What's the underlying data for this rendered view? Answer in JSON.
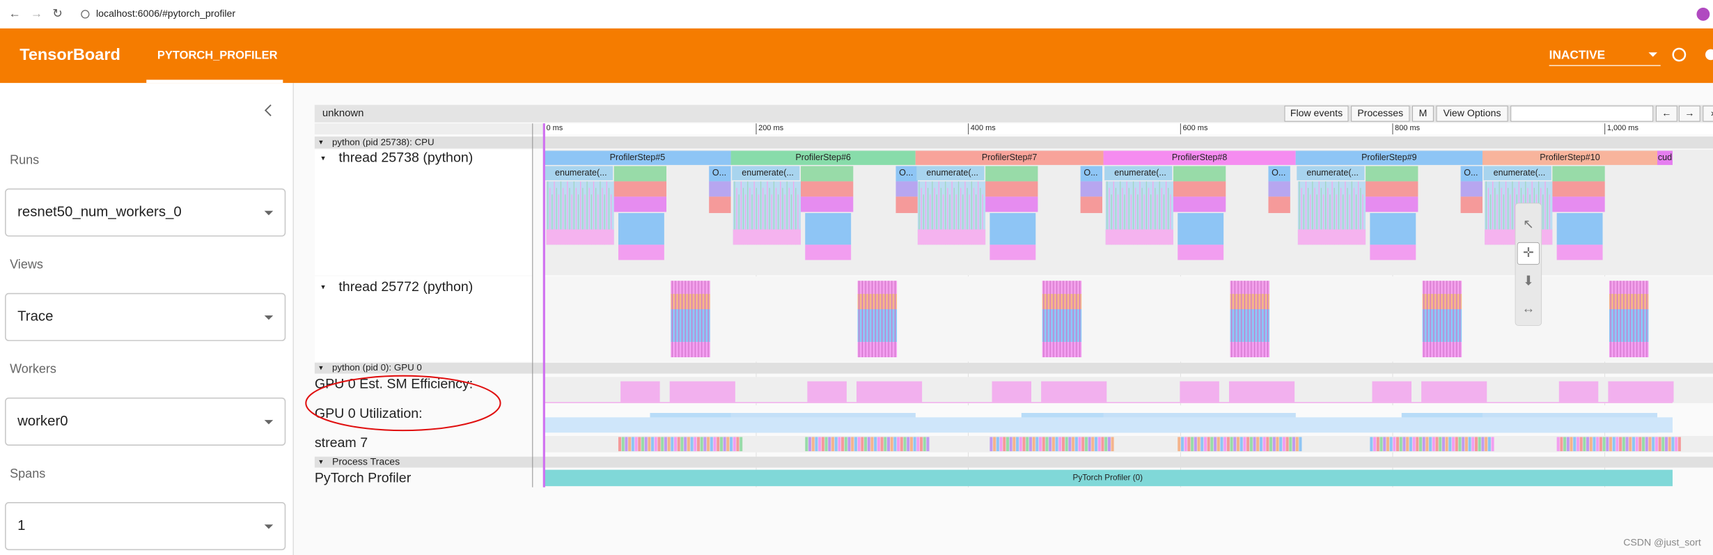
{
  "browser": {
    "url": "localhost:6006/#pytorch_profiler"
  },
  "header": {
    "brand": "TensorBoard",
    "tab": "PYTORCH_PROFILER",
    "status": "INACTIVE"
  },
  "sidebar": {
    "fields": [
      {
        "label": "Runs",
        "value": "resnet50_num_workers_0"
      },
      {
        "label": "Views",
        "value": "Trace"
      },
      {
        "label": "Workers",
        "value": "worker0"
      },
      {
        "label": "Spans",
        "value": "1"
      }
    ]
  },
  "trace": {
    "title": "unknown",
    "buttons": [
      "Flow events",
      "Processes",
      "M",
      "View Options"
    ],
    "nav": [
      "←",
      "→",
      "»"
    ],
    "ruler": [
      "0 ms",
      "200 ms",
      "400 ms",
      "600 ms",
      "800 ms",
      "1,000 ms"
    ],
    "cpu_process": "python (pid 25738): CPU",
    "threads": [
      "thread 25738 (python)",
      "thread 25772 (python)"
    ],
    "steps": [
      "ProfilerStep#5",
      "ProfilerStep#6",
      "ProfilerStep#7",
      "ProfilerStep#8",
      "ProfilerStep#9",
      "ProfilerStep#10",
      "cud"
    ],
    "enumerate_labels": [
      "enumerate(...",
      "enumerate(...",
      "enumerate(...",
      "enumerate(...",
      "enumerate(...",
      "enumerate(..."
    ],
    "op_labels": [
      "O...",
      "O...",
      "O...",
      "O...",
      "O..."
    ],
    "gpu_process": "python (pid 0): GPU 0",
    "gpu_tracks": [
      "GPU 0 Est. SM Efficiency:",
      "GPU 0 Utilization:",
      "stream 7"
    ],
    "process_traces": "Process Traces",
    "profiler_track": "PyTorch Profiler",
    "profiler_slice": "PyTorch Profiler (0)"
  },
  "watermark": "CSDN @just_sort"
}
